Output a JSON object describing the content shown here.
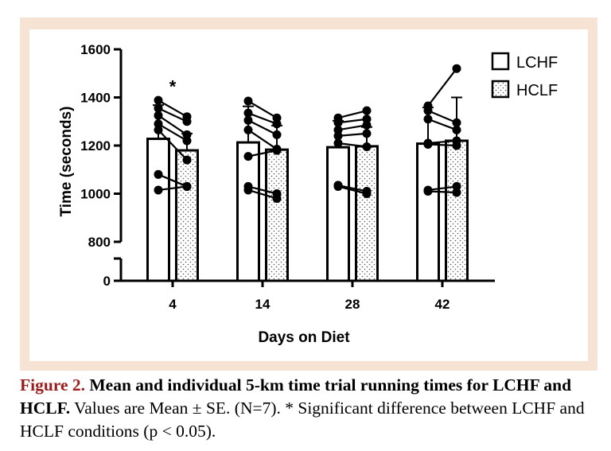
{
  "chart_data": {
    "type": "bar",
    "xlabel": "Days on Diet",
    "ylabel": "Time (seconds)",
    "categories": [
      "4",
      "14",
      "28",
      "42"
    ],
    "y_ticks": [
      "0",
      "800",
      "1000",
      "1200",
      "1400",
      "1600"
    ],
    "axis_break": true,
    "ylim": [
      800,
      1600
    ],
    "legend_position": "top-right",
    "series": [
      {
        "name": "LCHF",
        "pattern": "open",
        "values": [
          1228,
          1213,
          1193,
          1208
        ],
        "se": [
          140,
          150,
          110,
          150
        ],
        "individuals": [
          [
            1388,
            1355,
            1325,
            1290,
            1265,
            1080,
            1015
          ],
          [
            1385,
            1335,
            1305,
            1265,
            1155,
            1030,
            1015
          ],
          [
            1315,
            1295,
            1265,
            1240,
            1210,
            1035,
            1030
          ],
          [
            1365,
            1345,
            1310,
            1210,
            1205,
            1015,
            1010
          ]
        ]
      },
      {
        "name": "HCLF",
        "pattern": "dotted",
        "values": [
          1180,
          1183,
          1197,
          1220
        ],
        "se": [
          70,
          100,
          80,
          180
        ],
        "individuals": [
          [
            1320,
            1300,
            1245,
            1220,
            1140,
            1030,
            1030
          ],
          [
            1315,
            1290,
            1245,
            1185,
            1180,
            1000,
            980
          ],
          [
            1345,
            1310,
            1285,
            1250,
            1195,
            1010,
            1000
          ],
          [
            1520,
            1295,
            1265,
            1220,
            1200,
            1030,
            1005
          ]
        ]
      }
    ],
    "annotations": [
      {
        "text": "*",
        "category": "4"
      }
    ]
  },
  "caption": {
    "label": "Figure 2.",
    "title": "Mean and individual 5-km time trial running times for LCHF and HCLF.",
    "text": "Values are Mean ± SE. (N=7). * Significant difference between LCHF and HCLF conditions (p < 0.05)."
  }
}
